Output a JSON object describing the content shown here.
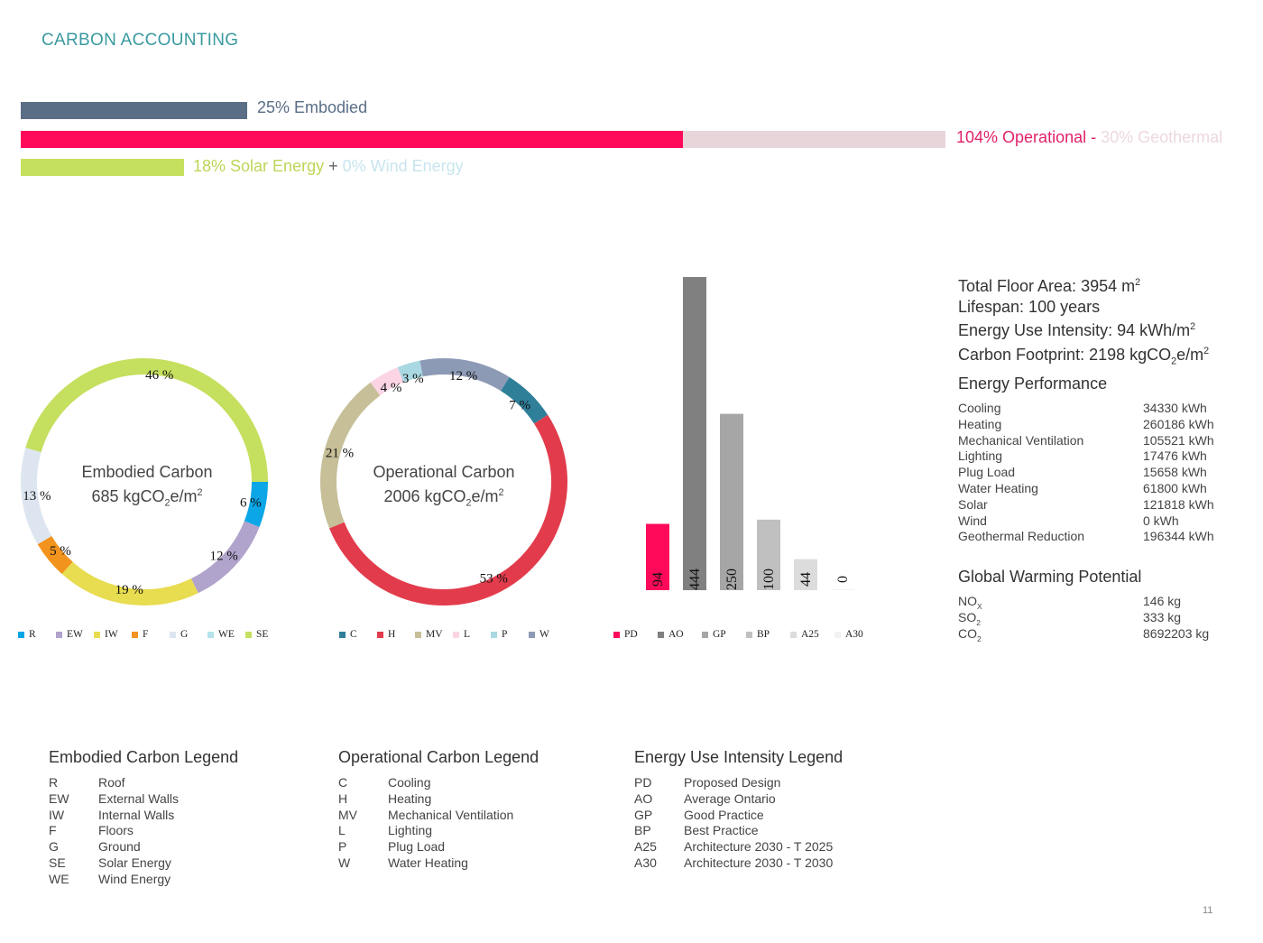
{
  "header": {
    "title": "CARBON ACCOUNTING",
    "page_number": "11"
  },
  "summary_bars": {
    "embodied": {
      "label": "25% Embodied",
      "color": "#5a6e86"
    },
    "operational": {
      "label": "104% Operational",
      "separator": " - ",
      "geothermal_label": "30% Geothermal",
      "color": "#ff0a5a",
      "geothermal_color": "#e8d5da"
    },
    "renewables": {
      "solar_label": "18% Solar Energy",
      "plus": " + ",
      "wind_label": "0% Wind Energy",
      "solar_color": "#c5df5e",
      "wind_color": "#cde8ef"
    }
  },
  "donut_embodied": {
    "center_line1": "Embodied Carbon",
    "center_line2_prefix": "685 kgCO",
    "center_line2_sub": "2",
    "center_line2_mid": "e/m",
    "center_line2_sup": "2"
  },
  "donut_operational": {
    "center_line1": "Operational Carbon",
    "center_line2_prefix": "2006 kgCO",
    "center_line2_sub": "2",
    "center_line2_mid": "e/m",
    "center_line2_sup": "2"
  },
  "chart_data": [
    {
      "type": "pie",
      "name": "embodied",
      "categories": [
        "R",
        "EW",
        "IW",
        "F",
        "G",
        "WE",
        "SE"
      ],
      "values": [
        6,
        12,
        19,
        5,
        13,
        0,
        46
      ],
      "labels": [
        "6 %",
        "12 %",
        "19 %",
        "5 %",
        "13 %",
        "",
        "46 %"
      ],
      "colors": [
        "#0aa6e6",
        "#b0a3cc",
        "#e8dc50",
        "#f2931e",
        "#dde6f0",
        "#b5e3ec",
        "#c5df5e"
      ]
    },
    {
      "type": "pie",
      "name": "operational",
      "categories": [
        "C",
        "H",
        "MV",
        "L",
        "P",
        "W"
      ],
      "values": [
        7,
        53,
        21,
        4,
        3,
        12
      ],
      "labels": [
        "7 %",
        "53 %",
        "21 %",
        "4 %",
        "3 %",
        "12 %"
      ],
      "colors": [
        "#2f7f99",
        "#e23c4c",
        "#c6bf98",
        "#fcd5e5",
        "#a9d8e2",
        "#8d9ab5"
      ]
    },
    {
      "type": "bar",
      "name": "energy_use_intensity",
      "categories": [
        "PD",
        "AO",
        "GP",
        "BP",
        "A25",
        "A30"
      ],
      "values": [
        94,
        444,
        250,
        100,
        44,
        0
      ],
      "colors": [
        "#ff0a5a",
        "#808080",
        "#a6a6a6",
        "#c0c0c0",
        "#dcdcdc",
        "#f2f2f2"
      ]
    }
  ],
  "building_info": {
    "floor_area_prefix": "Total Floor Area: 3954 m",
    "floor_area_sup": "2",
    "lifespan": "Lifespan: 100 years",
    "eui_prefix": "Energy Use Intensity: 94 kWh/m",
    "eui_sup": "2",
    "footprint_prefix": "Carbon Footprint: 2198 kgCO",
    "footprint_sub": "2",
    "footprint_mid": "e/m",
    "footprint_sup": "2"
  },
  "energy_performance": {
    "title": "Energy Performance",
    "rows": [
      {
        "k": "Cooling",
        "v": "34330 kWh"
      },
      {
        "k": "Heating",
        "v": "260186 kWh"
      },
      {
        "k": "Mechanical Ventilation",
        "v": "105521 kWh"
      },
      {
        "k": "Lighting",
        "v": "17476 kWh"
      },
      {
        "k": "Plug Load",
        "v": "15658 kWh"
      },
      {
        "k": "Water Heating",
        "v": "61800 kWh"
      },
      {
        "k": "Solar",
        "v": "121818 kWh"
      },
      {
        "k": "Wind",
        "v": "0 kWh"
      },
      {
        "k": "Geothermal Reduction",
        "v": "196344 kWh"
      }
    ]
  },
  "gwp": {
    "title": "Global Warming Potential",
    "rows": [
      {
        "k": "NO",
        "sub": "X",
        "v": "146 kg"
      },
      {
        "k": "SO",
        "sub": "2",
        "v": "333 kg"
      },
      {
        "k": "CO",
        "sub": "2",
        "v": "8692203 kg"
      }
    ]
  },
  "legends": {
    "embodied": {
      "title": "Embodied Carbon Legend",
      "rows": [
        {
          "code": "R",
          "desc": "Roof"
        },
        {
          "code": "EW",
          "desc": "External Walls"
        },
        {
          "code": "IW",
          "desc": "Internal Walls"
        },
        {
          "code": "F",
          "desc": "Floors"
        },
        {
          "code": "G",
          "desc": "Ground"
        },
        {
          "code": "SE",
          "desc": "Solar Energy"
        },
        {
          "code": "WE",
          "desc": "Wind Energy"
        }
      ]
    },
    "operational": {
      "title": "Operational Carbon Legend",
      "rows": [
        {
          "code": "C",
          "desc": "Cooling"
        },
        {
          "code": "H",
          "desc": "Heating"
        },
        {
          "code": "MV",
          "desc": "Mechanical Ventilation"
        },
        {
          "code": "L",
          "desc": "Lighting"
        },
        {
          "code": "P",
          "desc": "Plug Load"
        },
        {
          "code": "W",
          "desc": "Water Heating"
        }
      ]
    },
    "eui": {
      "title": "Energy Use Intensity Legend",
      "rows": [
        {
          "code": "PD",
          "desc": "Proposed Design"
        },
        {
          "code": "AO",
          "desc": "Average Ontario"
        },
        {
          "code": "GP",
          "desc": "Good Practice"
        },
        {
          "code": "BP",
          "desc": "Best Practice"
        },
        {
          "code": "A25",
          "desc": "Architecture 2030 - T 2025"
        },
        {
          "code": "A30",
          "desc": "Architecture 2030 - T 2030"
        }
      ]
    }
  }
}
